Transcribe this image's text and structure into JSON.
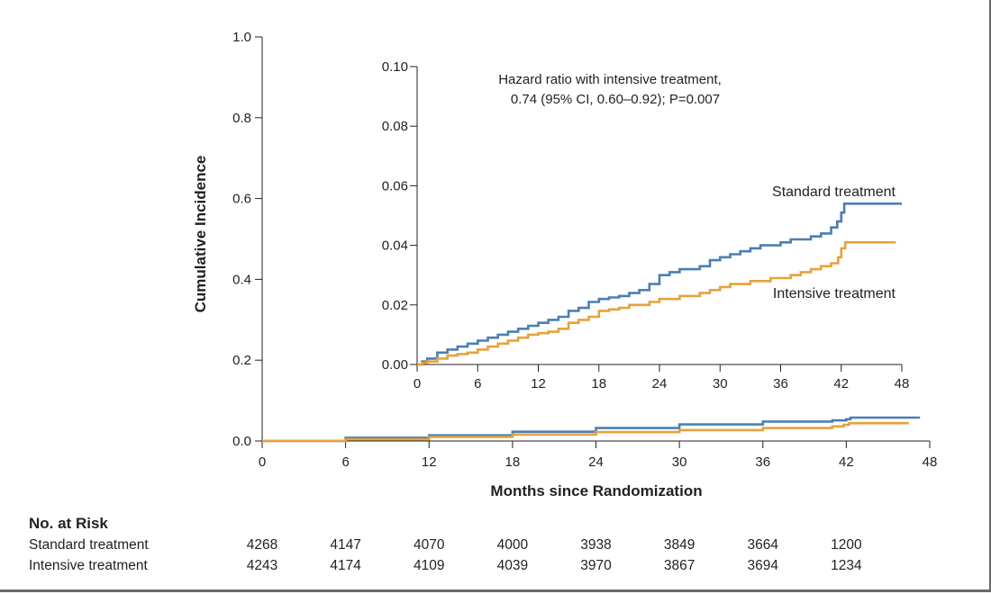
{
  "chart_data": [
    {
      "type": "line",
      "id": "main",
      "xlabel": "Months since Randomization",
      "ylabel": "Cumulative Incidence",
      "xlim": [
        0,
        48
      ],
      "ylim": [
        0,
        1.0
      ],
      "x_ticks": [
        0,
        6,
        12,
        18,
        24,
        30,
        36,
        42,
        48
      ],
      "y_ticks": [
        "0.0",
        "0.2",
        "0.4",
        "0.6",
        "0.8",
        "1.0"
      ],
      "series": [
        {
          "name": "Standard treatment",
          "color": "#4a7fb5",
          "points": [
            [
              0,
              0
            ],
            [
              6,
              0.008
            ],
            [
              12,
              0.014
            ],
            [
              18,
              0.023
            ],
            [
              24,
              0.032
            ],
            [
              30,
              0.041
            ],
            [
              36,
              0.048
            ],
            [
              41,
              0.051
            ],
            [
              42,
              0.054
            ],
            [
              42.3,
              0.058
            ],
            [
              47.3,
              0.058
            ]
          ]
        },
        {
          "name": "Intensive treatment",
          "color": "#e6a23c",
          "points": [
            [
              0,
              0
            ],
            [
              6,
              0.004
            ],
            [
              12,
              0.01
            ],
            [
              18,
              0.016
            ],
            [
              24,
              0.022
            ],
            [
              30,
              0.027
            ],
            [
              36,
              0.032
            ],
            [
              41,
              0.036
            ],
            [
              41.8,
              0.04
            ],
            [
              42.2,
              0.044
            ],
            [
              46.5,
              0.044
            ]
          ]
        }
      ]
    },
    {
      "type": "line",
      "id": "inset",
      "xlim": [
        0,
        48
      ],
      "ylim": [
        0,
        0.1
      ],
      "x_ticks": [
        0,
        6,
        12,
        18,
        24,
        30,
        36,
        42,
        48
      ],
      "y_ticks": [
        "0.00",
        "0.02",
        "0.04",
        "0.06",
        "0.08",
        "0.10"
      ],
      "annotation": [
        "Hazard ratio with intensive treatment,",
        "0.74 (95% CI, 0.60–0.92); P=0.007"
      ],
      "series": [
        {
          "name": "Standard treatment",
          "color": "#4a7fb5",
          "points": [
            [
              0,
              0
            ],
            [
              0.5,
              0.001
            ],
            [
              1,
              0.002
            ],
            [
              2,
              0.004
            ],
            [
              3,
              0.005
            ],
            [
              4,
              0.006
            ],
            [
              5,
              0.007
            ],
            [
              6,
              0.008
            ],
            [
              7,
              0.009
            ],
            [
              8,
              0.01
            ],
            [
              9,
              0.011
            ],
            [
              10,
              0.012
            ],
            [
              11,
              0.013
            ],
            [
              12,
              0.014
            ],
            [
              13,
              0.015
            ],
            [
              14,
              0.016
            ],
            [
              15,
              0.018
            ],
            [
              16,
              0.019
            ],
            [
              17,
              0.021
            ],
            [
              18,
              0.022
            ],
            [
              19,
              0.0225
            ],
            [
              20,
              0.023
            ],
            [
              21,
              0.024
            ],
            [
              22,
              0.025
            ],
            [
              23,
              0.027
            ],
            [
              24,
              0.03
            ],
            [
              25,
              0.031
            ],
            [
              26,
              0.032
            ],
            [
              27,
              0.032
            ],
            [
              28,
              0.033
            ],
            [
              29,
              0.035
            ],
            [
              30,
              0.036
            ],
            [
              31,
              0.037
            ],
            [
              32,
              0.038
            ],
            [
              33,
              0.039
            ],
            [
              34,
              0.04
            ],
            [
              35,
              0.04
            ],
            [
              36,
              0.041
            ],
            [
              37,
              0.042
            ],
            [
              38,
              0.042
            ],
            [
              39,
              0.043
            ],
            [
              40,
              0.044
            ],
            [
              41,
              0.046
            ],
            [
              41.6,
              0.048
            ],
            [
              42,
              0.051
            ],
            [
              42.3,
              0.054
            ],
            [
              48,
              0.054
            ]
          ]
        },
        {
          "name": "Intensive treatment",
          "color": "#e6a23c",
          "points": [
            [
              0,
              0
            ],
            [
              0.5,
              0.0005
            ],
            [
              1,
              0.001
            ],
            [
              2,
              0.002
            ],
            [
              3,
              0.003
            ],
            [
              4,
              0.0035
            ],
            [
              5,
              0.004
            ],
            [
              6,
              0.005
            ],
            [
              7,
              0.006
            ],
            [
              8,
              0.007
            ],
            [
              9,
              0.008
            ],
            [
              10,
              0.009
            ],
            [
              11,
              0.01
            ],
            [
              12,
              0.0105
            ],
            [
              13,
              0.011
            ],
            [
              14,
              0.012
            ],
            [
              15,
              0.014
            ],
            [
              16,
              0.015
            ],
            [
              17,
              0.016
            ],
            [
              18,
              0.018
            ],
            [
              19,
              0.0185
            ],
            [
              20,
              0.019
            ],
            [
              21,
              0.02
            ],
            [
              22,
              0.02
            ],
            [
              23,
              0.021
            ],
            [
              24,
              0.022
            ],
            [
              25,
              0.022
            ],
            [
              26,
              0.023
            ],
            [
              27,
              0.023
            ],
            [
              28,
              0.024
            ],
            [
              29,
              0.025
            ],
            [
              30,
              0.026
            ],
            [
              31,
              0.027
            ],
            [
              32,
              0.027
            ],
            [
              33,
              0.028
            ],
            [
              34,
              0.028
            ],
            [
              35,
              0.029
            ],
            [
              36,
              0.029
            ],
            [
              37,
              0.03
            ],
            [
              38,
              0.031
            ],
            [
              39,
              0.032
            ],
            [
              40,
              0.033
            ],
            [
              41,
              0.034
            ],
            [
              41.7,
              0.036
            ],
            [
              42,
              0.039
            ],
            [
              42.4,
              0.041
            ],
            [
              47.4,
              0.041
            ]
          ]
        }
      ]
    }
  ],
  "risk_table": {
    "title": "No. at Risk",
    "months": [
      0,
      6,
      12,
      18,
      24,
      30,
      36,
      42
    ],
    "rows": [
      {
        "label": "Standard treatment",
        "values": [
          "4268",
          "4147",
          "4070",
          "4000",
          "3938",
          "3849",
          "3664",
          "1200"
        ]
      },
      {
        "label": "Intensive treatment",
        "values": [
          "4243",
          "4174",
          "4109",
          "4039",
          "3970",
          "3867",
          "3694",
          "1234"
        ]
      }
    ]
  }
}
